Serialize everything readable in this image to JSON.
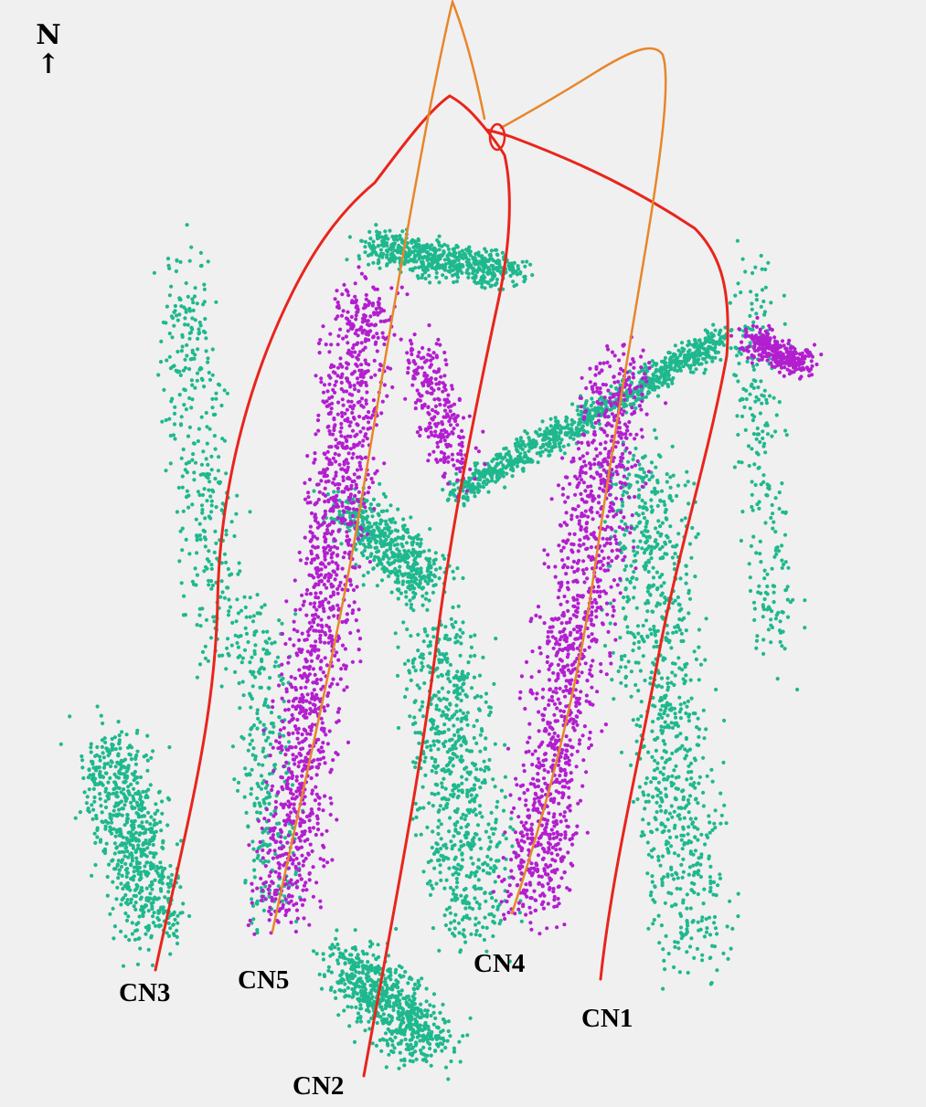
{
  "north_indicator": {
    "letter": "N",
    "arrow": "↑"
  },
  "colors": {
    "background": "#f0f0f0",
    "red_wells": "#e8251c",
    "orange_wells": "#e8862a",
    "points_green": "#1fb88e",
    "points_magenta": "#b21fcf"
  },
  "wells": [
    {
      "id": "CN1",
      "label": "CN1",
      "color_key": "red_wells"
    },
    {
      "id": "CN2",
      "label": "CN2",
      "color_key": "red_wells"
    },
    {
      "id": "CN3",
      "label": "CN3",
      "color_key": "red_wells"
    },
    {
      "id": "CN4",
      "label": "CN4",
      "color_key": "orange_wells"
    },
    {
      "id": "CN5",
      "label": "CN5",
      "color_key": "orange_wells"
    }
  ]
}
